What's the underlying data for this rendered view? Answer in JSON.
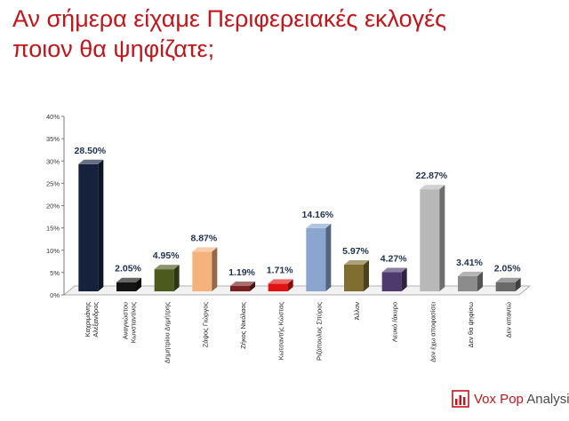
{
  "title_lines": [
    "Αν σήμερα είχαμε Περιφερειακές εκλογές",
    "ποιον θα ψηφίζατε;"
  ],
  "logo": {
    "accent": "Vox Pop",
    "rest": " Analysis"
  },
  "chart_data": {
    "type": "bar",
    "ylim": [
      0,
      40
    ],
    "yticks": [
      "0%",
      "5%",
      "10%",
      "15%",
      "20%",
      "25%",
      "30%",
      "35%",
      "40%"
    ],
    "categories": [
      [
        "Καχριμάνης",
        "Αλέξανδρος"
      ],
      [
        "Αναγνώστου",
        "Κωνσταντίνος"
      ],
      [
        "Δημητρίου Δημήτρης"
      ],
      [
        "Ζάψος Γιώργος"
      ],
      [
        "Ζήκος Νικόλαος"
      ],
      [
        "Κωτσαντής Κώστας"
      ],
      [
        "Ριζόπουλος Σπύρος"
      ],
      [
        "Άλλον"
      ],
      [
        "Λευκό /άκυρο"
      ],
      [
        "Δεν έχω αποφασίσει"
      ],
      [
        "Δεν θα ψηφίσω"
      ],
      [
        "Δεν απαντώ"
      ]
    ],
    "values": [
      28.5,
      2.05,
      4.95,
      8.87,
      1.19,
      1.71,
      14.16,
      5.97,
      4.27,
      22.87,
      3.41,
      2.05
    ],
    "data_labels": [
      "28.50%",
      "2.05%",
      "4.95%",
      "8.87%",
      "1.19%",
      "1.71%",
      "14.16%",
      "5.97%",
      "4.27%",
      "22.87%",
      "3.41%",
      "2.05%"
    ],
    "colors": [
      "#16213e",
      "#141414",
      "#4d5a1e",
      "#f5b27a",
      "#7a2020",
      "#e01212",
      "#8aa6cf",
      "#7f6e30",
      "#4f3a6e",
      "#b8b8b8",
      "#8c8c8c",
      "#6a6a6a"
    ],
    "grid": false
  }
}
